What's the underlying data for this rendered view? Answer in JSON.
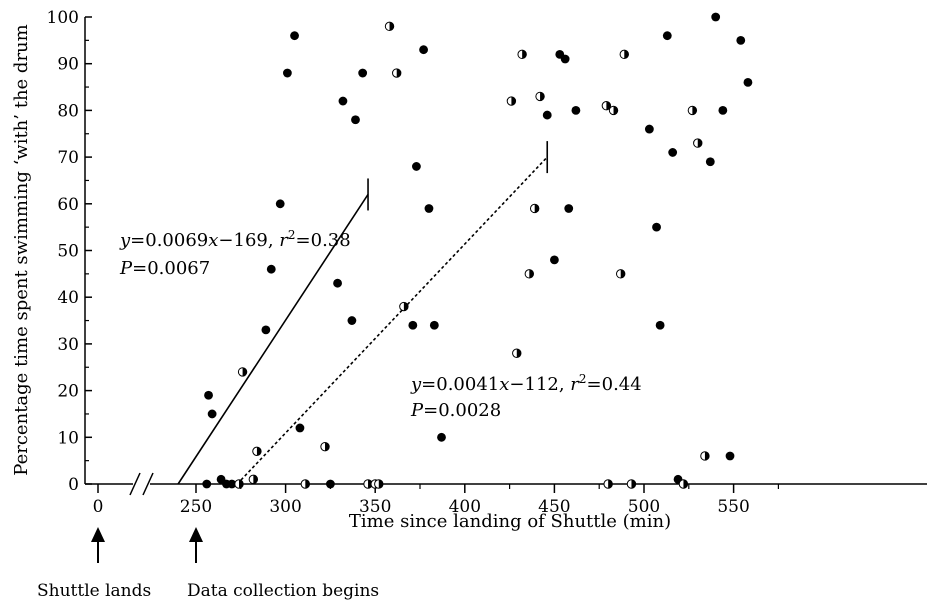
{
  "chart_data": {
    "type": "scatter",
    "xlabel": "Time since landing of Shuttle (min)",
    "ylabel": "Percentage time spent swimming ‘with’ the drum",
    "xlim": [
      0,
      560
    ],
    "ylim": [
      0,
      100
    ],
    "x_axis_break": [
      20,
      240
    ],
    "x_ticks": [
      0,
      250,
      300,
      350,
      400,
      450,
      500,
      550
    ],
    "y_ticks": [
      0,
      10,
      20,
      30,
      40,
      50,
      60,
      70,
      80,
      90,
      100
    ],
    "grid": false,
    "series": [
      {
        "marker": "filled",
        "points": [
          [
            256,
            0
          ],
          [
            257,
            19
          ],
          [
            259,
            15
          ],
          [
            264,
            1
          ],
          [
            267,
            0
          ],
          [
            270,
            0
          ],
          [
            289,
            33
          ],
          [
            292,
            46
          ],
          [
            297,
            60
          ],
          [
            301,
            88
          ],
          [
            305,
            96
          ],
          [
            308,
            12
          ],
          [
            325,
            0
          ],
          [
            329,
            43
          ],
          [
            332,
            82
          ],
          [
            337,
            35
          ],
          [
            339,
            78
          ],
          [
            343,
            88
          ],
          [
            371,
            34
          ],
          [
            373,
            68
          ],
          [
            377,
            93
          ],
          [
            380,
            59
          ],
          [
            383,
            34
          ],
          [
            387,
            10
          ],
          [
            446,
            79
          ],
          [
            450,
            48
          ],
          [
            453,
            92
          ],
          [
            456,
            91
          ],
          [
            458,
            59
          ],
          [
            462,
            80
          ],
          [
            503,
            76
          ],
          [
            507,
            55
          ],
          [
            509,
            34
          ],
          [
            513,
            96
          ],
          [
            516,
            71
          ],
          [
            519,
            1
          ],
          [
            537,
            69
          ],
          [
            540,
            100
          ],
          [
            544,
            80
          ],
          [
            548,
            6
          ],
          [
            554,
            95
          ],
          [
            558,
            86
          ]
        ]
      },
      {
        "marker": "open",
        "points": [
          [
            274,
            0
          ],
          [
            276,
            24
          ],
          [
            282,
            1
          ],
          [
            284,
            7
          ],
          [
            311,
            0
          ],
          [
            322,
            8
          ],
          [
            346,
            0
          ],
          [
            350,
            0
          ],
          [
            352,
            0
          ],
          [
            358,
            98
          ],
          [
            362,
            88
          ],
          [
            366,
            38
          ],
          [
            426,
            82
          ],
          [
            429,
            28
          ],
          [
            432,
            92
          ],
          [
            436,
            45
          ],
          [
            439,
            59
          ],
          [
            442,
            83
          ],
          [
            479,
            81
          ],
          [
            480,
            0
          ],
          [
            483,
            80
          ],
          [
            487,
            45
          ],
          [
            489,
            92
          ],
          [
            493,
            0
          ],
          [
            522,
            0
          ],
          [
            527,
            80
          ],
          [
            530,
            73
          ],
          [
            534,
            6
          ]
        ]
      }
    ],
    "regression_lines": [
      {
        "style": "solid",
        "x_range": [
          240,
          346
        ],
        "annotation_line1": "y=0.0069x−169, r²=0.38",
        "annotation_line2": "P=0.0067"
      },
      {
        "style": "dotted",
        "x_range": [
          273,
          446
        ],
        "annotation_line1": "y=0.0041x−112, r²=0.44",
        "annotation_line2": "P=0.0028"
      }
    ],
    "events": [
      {
        "x": 0,
        "label": "Shuttle lands"
      },
      {
        "x": 250,
        "label": "Data collection begins"
      }
    ]
  }
}
